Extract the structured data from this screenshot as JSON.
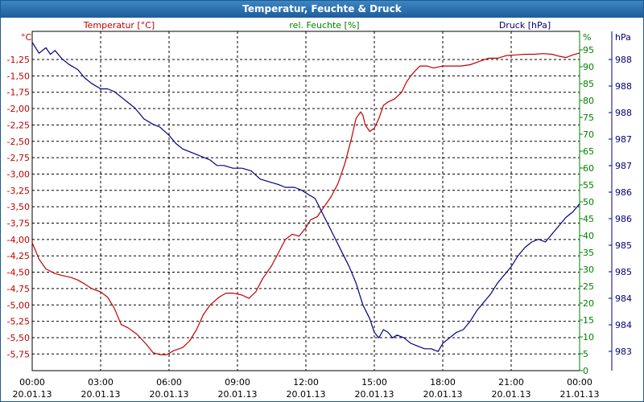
{
  "chart_data": {
    "type": "line",
    "title": "Temperatur, Feuchte & Druck",
    "x_ticks": [
      {
        "time": "00:00",
        "date": "20.01.13"
      },
      {
        "time": "03:00",
        "date": "20.01.13"
      },
      {
        "time": "06:00",
        "date": "20.01.13"
      },
      {
        "time": "09:00",
        "date": "20.01.13"
      },
      {
        "time": "12:00",
        "date": "20.01.13"
      },
      {
        "time": "15:00",
        "date": "20.01.13"
      },
      {
        "time": "18:00",
        "date": "20.01.13"
      },
      {
        "time": "21:00",
        "date": "20.01.13"
      },
      {
        "time": "00:00",
        "date": "21.01.13"
      }
    ],
    "xlim": [
      0,
      24
    ],
    "left_axis": {
      "label": "Temperatur [°C]",
      "unit": "°C",
      "color": "#c00000",
      "ylim": [
        -6.0,
        -1.0
      ],
      "ticks": [
        "-1,25",
        "-1,50",
        "-1,75",
        "-2,00",
        "-2,25",
        "-2,50",
        "-2,75",
        "-3,00",
        "-3,25",
        "-3,50",
        "-3,75",
        "-4,00",
        "-4,25",
        "-4,50",
        "-4,75",
        "-5,00",
        "-5,25",
        "-5,50",
        "-5,75"
      ]
    },
    "mid_axis": {
      "label": "rel. Feuchte [%]",
      "unit": "%",
      "color": "#008000",
      "ylim": [
        0,
        100
      ],
      "ticks": [
        "0",
        "5",
        "10",
        "15",
        "20",
        "25",
        "30",
        "35",
        "40",
        "45",
        "50",
        "55",
        "60",
        "65",
        "70",
        "75",
        "80",
        "85",
        "90",
        "95"
      ]
    },
    "right_axis": {
      "label": "Druck [hPa]",
      "unit": "hPa",
      "color": "#000080",
      "ylim": [
        982.6,
        988.8
      ],
      "ticks": [
        "983",
        "984",
        "984",
        "985",
        "985",
        "986",
        "986",
        "987",
        "987",
        "988",
        "988",
        "988"
      ]
    },
    "series": [
      {
        "name": "Temperatur",
        "axis": "left",
        "color": "#c00000",
        "x": [
          0,
          0.3,
          0.6,
          1,
          1.3,
          1.7,
          2,
          2.3,
          2.6,
          3,
          3.3,
          3.6,
          3.9,
          4.2,
          4.6,
          5,
          5.3,
          5.6,
          5.9,
          6.2,
          6.6,
          6.9,
          7.2,
          7.5,
          7.8,
          8.2,
          8.5,
          8.8,
          9.2,
          9.5,
          9.8,
          10.1,
          10.5,
          10.8,
          11.1,
          11.4,
          11.7,
          12,
          12.2,
          12.5,
          12.8,
          13.1,
          13.4,
          13.7,
          14,
          14.2,
          14.4,
          14.5,
          14.6,
          14.8,
          15,
          15.2,
          15.4,
          15.6,
          15.9,
          16.2,
          16.4,
          16.6,
          16.8,
          17,
          17.3,
          17.6,
          18,
          18.4,
          18.8,
          19.2,
          19.6,
          20,
          20.4,
          20.8,
          21.2,
          21.6,
          22,
          22.4,
          22.8,
          23.1,
          23.4,
          23.7,
          24
        ],
        "values": [
          -4.05,
          -4.3,
          -4.45,
          -4.52,
          -4.55,
          -4.58,
          -4.62,
          -4.68,
          -4.75,
          -4.8,
          -4.88,
          -5.05,
          -5.3,
          -5.35,
          -5.45,
          -5.6,
          -5.73,
          -5.76,
          -5.76,
          -5.7,
          -5.65,
          -5.55,
          -5.38,
          -5.15,
          -5.0,
          -4.88,
          -4.82,
          -4.82,
          -4.85,
          -4.9,
          -4.8,
          -4.6,
          -4.4,
          -4.2,
          -4.0,
          -3.92,
          -3.95,
          -3.82,
          -3.7,
          -3.65,
          -3.5,
          -3.35,
          -3.15,
          -2.85,
          -2.45,
          -2.15,
          -2.05,
          -2.1,
          -2.25,
          -2.35,
          -2.3,
          -2.15,
          -1.95,
          -1.9,
          -1.85,
          -1.75,
          -1.6,
          -1.5,
          -1.42,
          -1.35,
          -1.35,
          -1.38,
          -1.35,
          -1.35,
          -1.35,
          -1.33,
          -1.28,
          -1.23,
          -1.23,
          -1.19,
          -1.18,
          -1.17,
          -1.17,
          -1.16,
          -1.17,
          -1.2,
          -1.22,
          -1.18,
          -1.15
        ]
      },
      {
        "name": "Druck",
        "axis": "right",
        "color": "#000080",
        "x": [
          0,
          0.3,
          0.6,
          0.8,
          1,
          1.3,
          1.6,
          2,
          2.3,
          2.6,
          3,
          3.3,
          3.6,
          3.9,
          4.2,
          4.5,
          4.9,
          5.3,
          5.6,
          6,
          6.3,
          6.6,
          6.9,
          7.2,
          7.5,
          7.8,
          8.1,
          8.4,
          8.8,
          9.2,
          9.6,
          10,
          10.4,
          10.8,
          11.1,
          11.5,
          11.8,
          12.1,
          12.4,
          12.7,
          13,
          13.3,
          13.6,
          13.9,
          14.2,
          14.5,
          14.8,
          15,
          15.2,
          15.4,
          15.6,
          15.8,
          16,
          16.3,
          16.6,
          16.9,
          17.2,
          17.5,
          17.8,
          18,
          18.3,
          18.6,
          18.9,
          19.2,
          19.5,
          19.8,
          20.1,
          20.4,
          20.7,
          21,
          21.3,
          21.6,
          21.9,
          22.2,
          22.5,
          22.8,
          23.1,
          23.4,
          23.7,
          24
        ],
        "values": [
          988.6,
          988.4,
          988.5,
          988.38,
          988.45,
          988.3,
          988.2,
          988.1,
          987.95,
          987.85,
          987.75,
          987.75,
          987.7,
          987.6,
          987.5,
          987.4,
          987.2,
          987.1,
          987.05,
          986.9,
          986.75,
          986.65,
          986.6,
          986.55,
          986.5,
          986.45,
          986.35,
          986.35,
          986.3,
          986.3,
          986.25,
          986.1,
          986.05,
          986.0,
          985.95,
          985.95,
          985.9,
          985.82,
          985.75,
          985.5,
          985.25,
          985.0,
          984.75,
          984.5,
          984.2,
          983.8,
          983.55,
          983.3,
          983.2,
          983.35,
          983.3,
          983.2,
          983.25,
          983.2,
          983.1,
          983.05,
          983.0,
          983.0,
          982.95,
          983.1,
          983.2,
          983.3,
          983.35,
          983.5,
          983.7,
          983.85,
          984.0,
          984.2,
          984.35,
          984.5,
          984.7,
          984.85,
          984.95,
          985.0,
          984.95,
          985.1,
          985.25,
          985.4,
          985.5,
          985.65
        ]
      }
    ]
  }
}
